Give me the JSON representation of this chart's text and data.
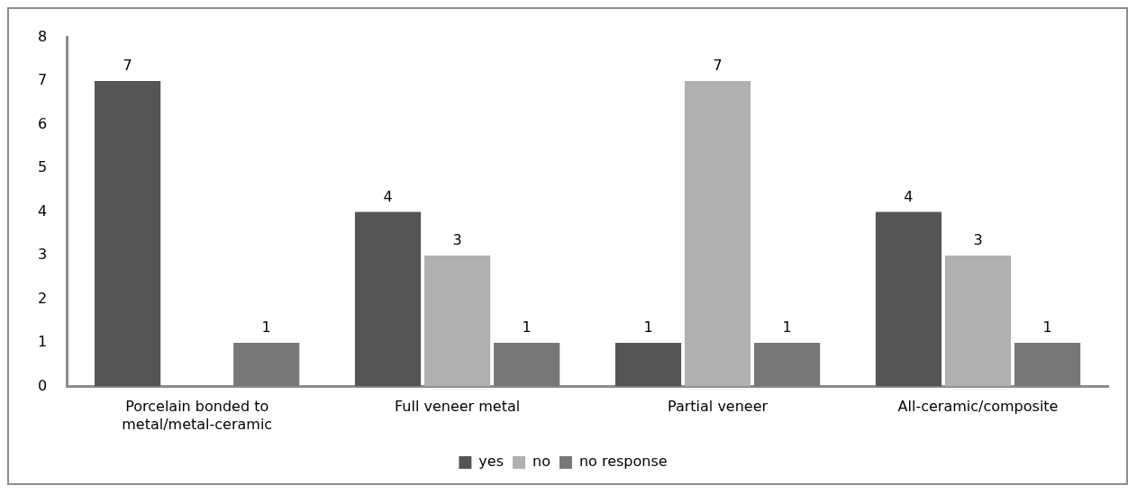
{
  "chart_data": {
    "type": "bar",
    "categories": [
      "Porcelain bonded to metal/metal-ceramic",
      "Full veneer metal",
      "Partial veneer",
      "All-ceramic/composite"
    ],
    "series": [
      {
        "name": "yes",
        "color": "#555555",
        "values": [
          7,
          4,
          1,
          4
        ]
      },
      {
        "name": "no",
        "color": "#b0b0b0",
        "values": [
          null,
          3,
          7,
          3
        ]
      },
      {
        "name": "no response",
        "color": "#777777",
        "values": [
          1,
          1,
          1,
          1
        ]
      }
    ],
    "ylim": [
      0,
      8
    ],
    "yticks": [
      0,
      1,
      2,
      3,
      4,
      5,
      6,
      7,
      8
    ],
    "grid": false,
    "legend": "bottom",
    "data_labels": true
  }
}
